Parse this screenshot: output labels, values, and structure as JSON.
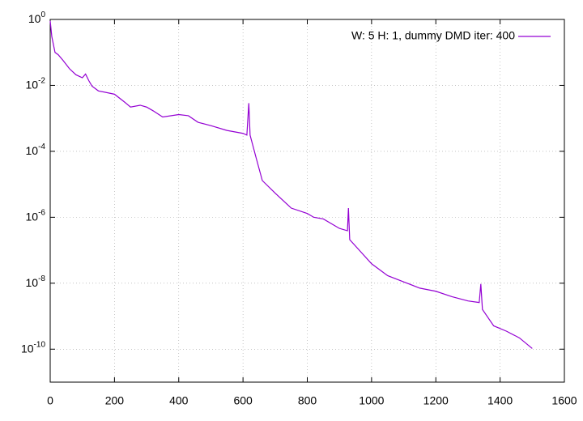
{
  "chart_data": {
    "type": "line",
    "log_y": true,
    "grid": true,
    "legend": "top-right",
    "xlim": [
      0,
      1600
    ],
    "xticks": [
      0,
      200,
      400,
      600,
      800,
      1000,
      1200,
      1400,
      1600
    ],
    "ylim": [
      1e-11,
      1
    ],
    "yticks": [
      {
        "value": 1,
        "label": "10",
        "exponent": "0"
      },
      {
        "value": 0.01,
        "label": "10",
        "exponent": "-2"
      },
      {
        "value": 0.0001,
        "label": "10",
        "exponent": "-4"
      },
      {
        "value": 1e-06,
        "label": "10",
        "exponent": "-6"
      },
      {
        "value": 1e-08,
        "label": "10",
        "exponent": "-8"
      },
      {
        "value": 1e-10,
        "label": "10",
        "exponent": "-10"
      }
    ],
    "x": [
      0,
      5,
      15,
      25,
      40,
      60,
      80,
      100,
      110,
      120,
      130,
      150,
      200,
      230,
      250,
      280,
      300,
      320,
      350,
      400,
      430,
      460,
      500,
      550,
      600,
      612,
      618,
      622,
      640,
      660,
      700,
      750,
      800,
      820,
      850,
      900,
      925,
      928,
      932,
      960,
      1000,
      1050,
      1100,
      1150,
      1200,
      1250,
      1300,
      1335,
      1340,
      1345,
      1380,
      1420,
      1460,
      1500
    ],
    "series": [
      {
        "name": "W: 5 H: 1, dummy DMD iter: 400",
        "color": "#9400d3",
        "values": [
          0.9,
          0.3,
          0.1,
          0.085,
          0.057,
          0.032,
          0.021,
          0.017,
          0.022,
          0.014,
          0.0095,
          0.0068,
          0.0054,
          0.0032,
          0.0022,
          0.0025,
          0.0022,
          0.0017,
          0.0011,
          0.0013,
          0.0012,
          0.00076,
          0.0006,
          0.00043,
          0.00035,
          0.00031,
          0.0029,
          0.00031,
          6.8e-05,
          1.3e-05,
          5.4e-06,
          1.9e-06,
          1.3e-06,
          1e-06,
          8.9e-07,
          4.6e-07,
          3.9e-07,
          1.9e-06,
          2.1e-07,
          1.05e-07,
          3.9e-08,
          1.7e-08,
          1.1e-08,
          7.1e-09,
          5.7e-09,
          3.9e-09,
          2.9e-09,
          2.6e-09,
          9.5e-09,
          1.6e-09,
          5.1e-10,
          3.5e-10,
          2.2e-10,
          1.05e-10
        ]
      }
    ]
  }
}
